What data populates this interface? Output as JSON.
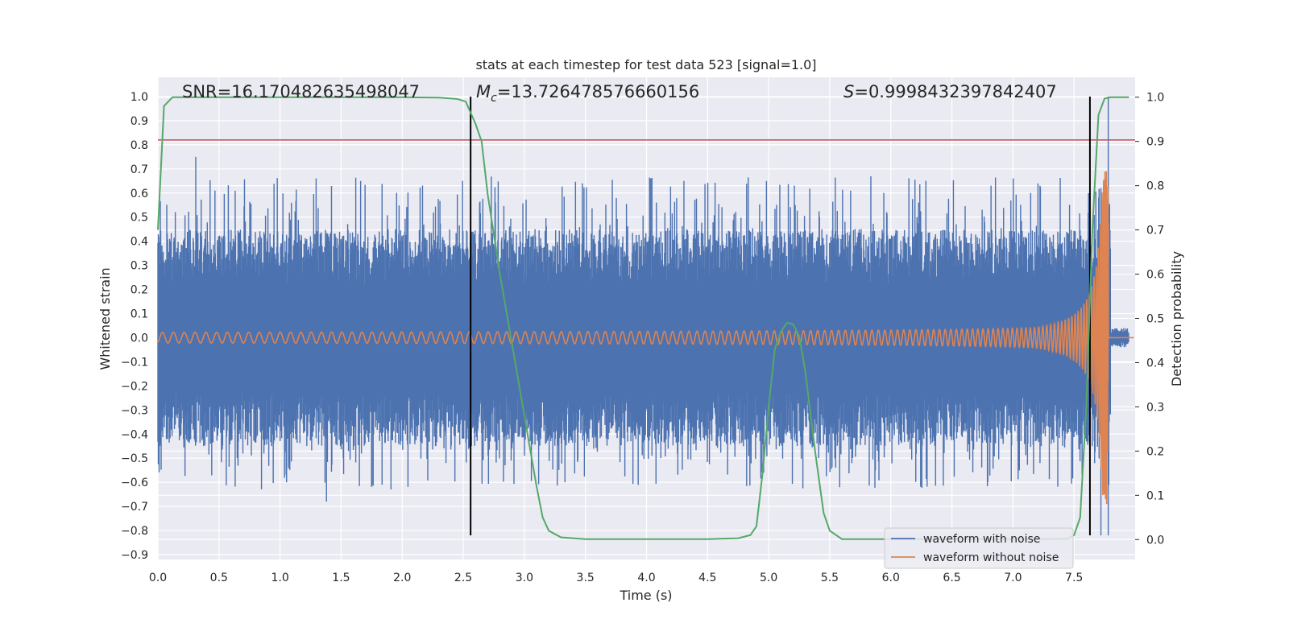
{
  "chart_data": {
    "type": "line",
    "title": "stats at each timestep for test data 523 [signal=1.0]",
    "xlabel": "Time (s)",
    "ylabel": "Whitened strain",
    "y2label": "Detection probability",
    "xlim": [
      0.0,
      8.0
    ],
    "ylim": [
      -0.92,
      1.08
    ],
    "y2lim": [
      -0.045,
      1.045
    ],
    "xticks": [
      0.0,
      0.5,
      1.0,
      1.5,
      2.0,
      2.5,
      3.0,
      3.5,
      4.0,
      4.5,
      5.0,
      5.5,
      6.0,
      6.5,
      7.0,
      7.5
    ],
    "xtick_labels": [
      "0.0",
      "0.5",
      "1.0",
      "1.5",
      "2.0",
      "2.5",
      "3.0",
      "3.5",
      "4.0",
      "4.5",
      "5.0",
      "5.5",
      "6.0",
      "6.5",
      "7.0",
      "7.5"
    ],
    "yticks": [
      1.0,
      0.9,
      0.8,
      0.7,
      0.6,
      0.5,
      0.4,
      0.3,
      0.2,
      0.1,
      0.0,
      -0.1,
      -0.2,
      -0.3,
      -0.4,
      -0.5,
      -0.6,
      -0.7,
      -0.8,
      -0.9
    ],
    "ytick_labels": [
      "1.0",
      "0.9",
      "0.8",
      "0.7",
      "0.6",
      "0.5",
      "0.4",
      "0.3",
      "0.2",
      "0.1",
      "0.0",
      "−0.1",
      "−0.2",
      "−0.3",
      "−0.4",
      "−0.5",
      "−0.6",
      "−0.7",
      "−0.8",
      "−0.9"
    ],
    "y2ticks": [
      1.0,
      0.9,
      0.8,
      0.7,
      0.6,
      0.5,
      0.4,
      0.3,
      0.2,
      0.1,
      0.0
    ],
    "y2tick_labels": [
      "1.0",
      "0.9",
      "0.8",
      "0.7",
      "0.6",
      "0.5",
      "0.4",
      "0.3",
      "0.2",
      "0.1",
      "0.0"
    ],
    "grid": true,
    "annotations": {
      "snr": "SNR=16.170482635498047",
      "mc_symbol": "M",
      "mc_sub": "c",
      "mc_value": "=13.726478576660156",
      "s_symbol": "S",
      "s_value": "=0.9998432397842407"
    },
    "threshold_line": {
      "value": 0.82,
      "color": "#c44e52"
    },
    "vertical_lines": [
      2.56,
      7.63
    ],
    "series": [
      {
        "name": "waveform with noise",
        "color": "#4c72b0",
        "description": "dense noisy strain, roughly within [-0.6, 0.6] with spikes",
        "noise_amplitude": 0.45,
        "spike_max": 0.75,
        "spike_min": -0.68
      },
      {
        "name": "waveform without noise",
        "color": "#dd8452",
        "description": "chirp signal, amplitude grows toward merger near 7.78 s",
        "merger_time": 7.78,
        "peak_max": 0.69,
        "peak_min": -0.64
      },
      {
        "name": "detection probability",
        "color": "#55a868",
        "axis": "right",
        "x": [
          0.0,
          0.05,
          0.12,
          0.3,
          1.0,
          2.0,
          2.3,
          2.45,
          2.52,
          2.6,
          2.65,
          2.7,
          2.8,
          2.9,
          3.0,
          3.1,
          3.15,
          3.2,
          3.3,
          3.5,
          4.0,
          4.5,
          4.75,
          4.85,
          4.9,
          4.95,
          5.0,
          5.05,
          5.1,
          5.15,
          5.2,
          5.25,
          5.3,
          5.38,
          5.45,
          5.5,
          5.6,
          6.0,
          6.5,
          7.0,
          7.3,
          7.45,
          7.5,
          7.55,
          7.6,
          7.65,
          7.7,
          7.75,
          7.8,
          7.85,
          7.95
        ],
        "y": [
          0.7,
          0.98,
          1.0,
          1.0,
          1.0,
          1.0,
          0.999,
          0.996,
          0.99,
          0.94,
          0.9,
          0.78,
          0.6,
          0.44,
          0.28,
          0.12,
          0.05,
          0.02,
          0.005,
          0.001,
          0.001,
          0.001,
          0.003,
          0.01,
          0.03,
          0.15,
          0.3,
          0.43,
          0.47,
          0.49,
          0.487,
          0.46,
          0.38,
          0.2,
          0.06,
          0.02,
          0.001,
          0.001,
          0.001,
          0.001,
          0.001,
          0.002,
          0.01,
          0.05,
          0.3,
          0.7,
          0.96,
          0.997,
          1.0,
          1.0,
          1.0
        ]
      }
    ],
    "legend": {
      "position": "lower-right",
      "entries": [
        "waveform with noise",
        "waveform without noise"
      ]
    }
  }
}
